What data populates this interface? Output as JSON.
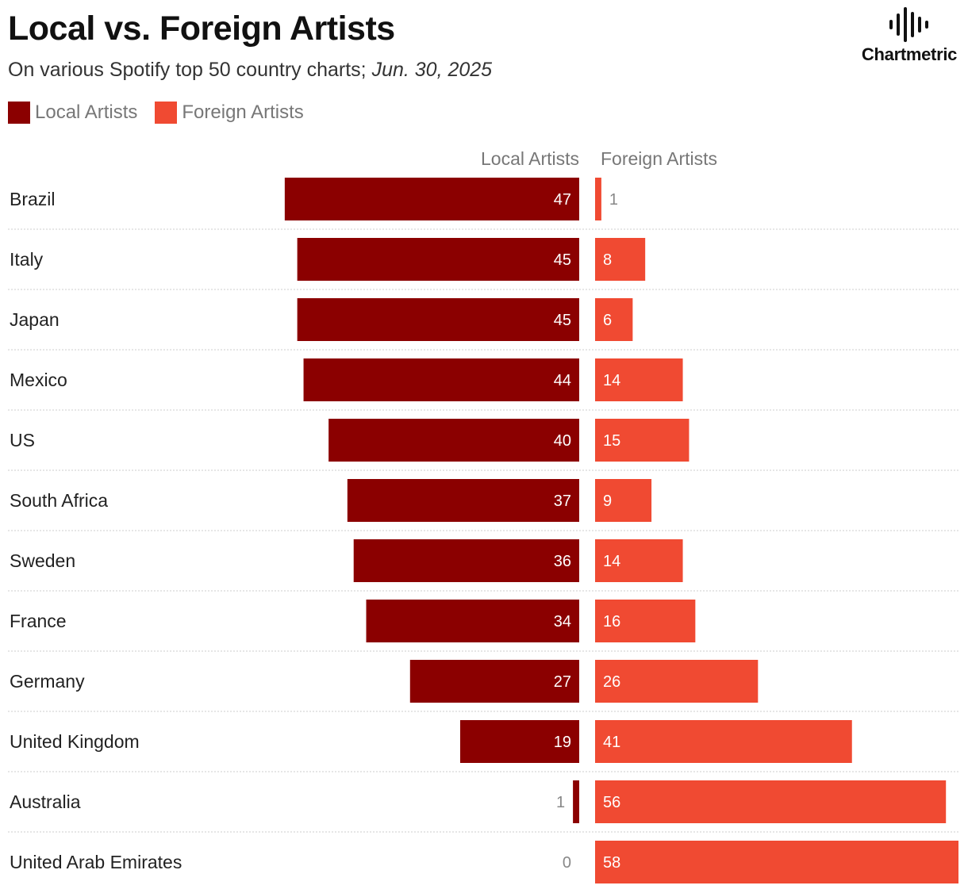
{
  "header": {
    "title": "Local vs. Foreign Artists",
    "subtitle_main": "On various Spotify top 50 country charts; ",
    "subtitle_date": "Jun. 30, 2025"
  },
  "logo": {
    "text": "Chartmetric",
    "icon": "waveform-icon"
  },
  "legend": {
    "local_label": "Local Artists",
    "foreign_label": "Foreign Artists"
  },
  "colors": {
    "local": "#8b0000",
    "foreign": "#f04a32",
    "gridline": "#cccccc"
  },
  "chart_data": {
    "type": "bar",
    "title": "Local vs. Foreign Artists",
    "subtitle": "On various Spotify top 50 country charts; Jun. 30, 2025",
    "orientation": "horizontal-diverging",
    "column_headers": [
      "Local Artists",
      "Foreign Artists"
    ],
    "categories": [
      "Brazil",
      "Italy",
      "Japan",
      "Mexico",
      "US",
      "South Africa",
      "Sweden",
      "France",
      "Germany",
      "United Kingdom",
      "Australia",
      "United Arab Emirates"
    ],
    "series": [
      {
        "name": "Local Artists",
        "values": [
          47,
          45,
          45,
          44,
          40,
          37,
          36,
          34,
          27,
          19,
          1,
          0
        ]
      },
      {
        "name": "Foreign Artists",
        "values": [
          1,
          8,
          6,
          14,
          15,
          9,
          14,
          16,
          26,
          41,
          56,
          58
        ]
      }
    ],
    "xlim": [
      0,
      58
    ],
    "legend_position": "top-left",
    "grid": false
  }
}
